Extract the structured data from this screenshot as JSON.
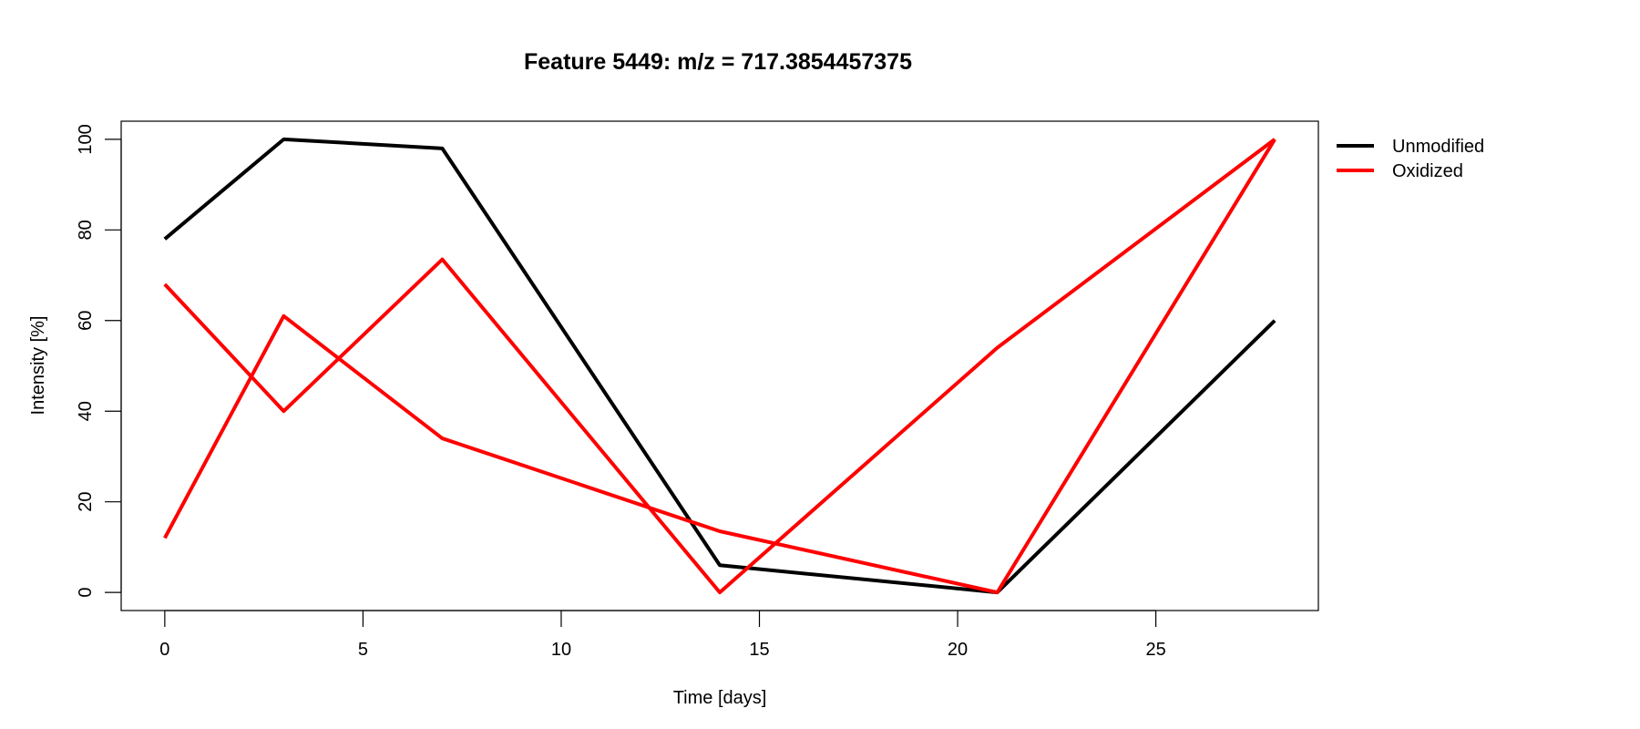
{
  "chart_data": {
    "type": "line",
    "title": "Feature 5449: m/z = 717.3854457375",
    "xlabel": "Time [days]",
    "ylabel": "Intensity [%]",
    "xlim": [
      -1.1,
      29.1
    ],
    "ylim": [
      -4,
      104
    ],
    "x_ticks": [
      0,
      5,
      10,
      15,
      20,
      25
    ],
    "y_ticks": [
      0,
      20,
      40,
      60,
      80,
      100
    ],
    "legend_position": "outside-top-right",
    "grid": false,
    "legend": [
      {
        "label": "Unmodified",
        "color": "#000000"
      },
      {
        "label": "Oxidized",
        "color": "#ff0000"
      }
    ],
    "series": [
      {
        "group": "Unmodified",
        "color": "#000000",
        "x": [
          0,
          3,
          7,
          14,
          21,
          28
        ],
        "y": [
          78,
          100,
          98,
          6,
          0,
          60
        ]
      },
      {
        "group": "Oxidized",
        "color": "#ff0000",
        "x": [
          0,
          3,
          7,
          14,
          21,
          28
        ],
        "y": [
          68,
          40,
          73.5,
          0,
          54,
          100
        ]
      },
      {
        "group": "Oxidized",
        "color": "#ff0000",
        "x": [
          0,
          3,
          7,
          14,
          21,
          28
        ],
        "y": [
          12,
          61,
          34,
          13.5,
          0,
          100
        ]
      }
    ]
  }
}
